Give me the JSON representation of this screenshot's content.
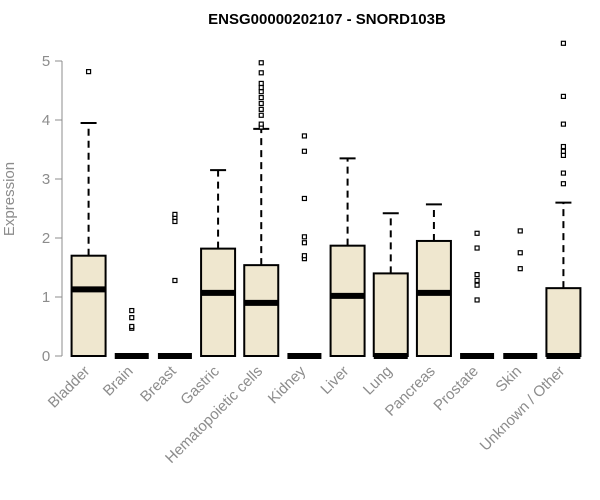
{
  "chart_data": {
    "type": "boxplot",
    "title": "ENSG00000202107 - SNORD103B",
    "ylabel": "Expression",
    "xlabel": "",
    "ylim": [
      0,
      5.3
    ],
    "yticks": [
      0,
      1,
      2,
      3,
      4,
      5
    ],
    "box_fill": "#efe7cf",
    "line_color": "#000000",
    "axis_color": "#8c8c8c",
    "grid": false,
    "series": [
      {
        "category": "Bladder",
        "whisker_low": 0,
        "q1": 0,
        "median": 1.13,
        "q3": 1.7,
        "whisker_high": 3.95,
        "outliers": [
          4.82
        ]
      },
      {
        "category": "Brain",
        "whisker_low": 0,
        "q1": 0,
        "median": 0,
        "q3": 0,
        "whisker_high": 0,
        "outliers": [
          0.47,
          0.5,
          0.65,
          0.77
        ]
      },
      {
        "category": "Breast",
        "whisker_low": 0,
        "q1": 0,
        "median": 0,
        "q3": 0,
        "whisker_high": 0,
        "outliers": [
          1.28,
          2.28,
          2.35,
          2.4
        ]
      },
      {
        "category": "Gastric",
        "whisker_low": 0,
        "q1": 0,
        "median": 1.07,
        "q3": 1.82,
        "whisker_high": 3.15,
        "outliers": []
      },
      {
        "category": "Hematopoietic cells",
        "whisker_low": 0,
        "q1": 0,
        "median": 0.9,
        "q3": 1.54,
        "whisker_high": 3.85,
        "outliers": [
          3.88,
          3.93,
          4.08,
          4.18,
          4.28,
          4.38,
          4.48,
          4.55,
          4.62,
          4.8,
          4.97
        ]
      },
      {
        "category": "Kidney",
        "whisker_low": 0,
        "q1": 0,
        "median": 0,
        "q3": 0,
        "whisker_high": 0,
        "outliers": [
          1.65,
          1.7,
          1.92,
          2.02,
          2.67,
          3.47,
          3.73
        ]
      },
      {
        "category": "Liver",
        "whisker_low": 0,
        "q1": 0,
        "median": 1.02,
        "q3": 1.87,
        "whisker_high": 3.35,
        "outliers": []
      },
      {
        "category": "Lung",
        "whisker_low": 0,
        "q1": 0,
        "median": 0,
        "q3": 1.4,
        "whisker_high": 2.42,
        "outliers": []
      },
      {
        "category": "Pancreas",
        "whisker_low": 0,
        "q1": 0,
        "median": 1.07,
        "q3": 1.95,
        "whisker_high": 2.57,
        "outliers": []
      },
      {
        "category": "Prostate",
        "whisker_low": 0,
        "q1": 0,
        "median": 0,
        "q3": 0,
        "whisker_high": 0,
        "outliers": [
          0.95,
          1.2,
          1.28,
          1.38,
          1.83,
          2.08
        ]
      },
      {
        "category": "Skin",
        "whisker_low": 0,
        "q1": 0,
        "median": 0,
        "q3": 0,
        "whisker_high": 0,
        "outliers": [
          1.48,
          1.75,
          2.12
        ]
      },
      {
        "category": "Unknown / Other",
        "whisker_low": 0,
        "q1": 0,
        "median": 0,
        "q3": 1.15,
        "whisker_high": 2.6,
        "outliers": [
          2.92,
          3.1,
          3.4,
          3.47,
          3.55,
          3.93,
          4.4,
          5.3
        ]
      }
    ]
  }
}
